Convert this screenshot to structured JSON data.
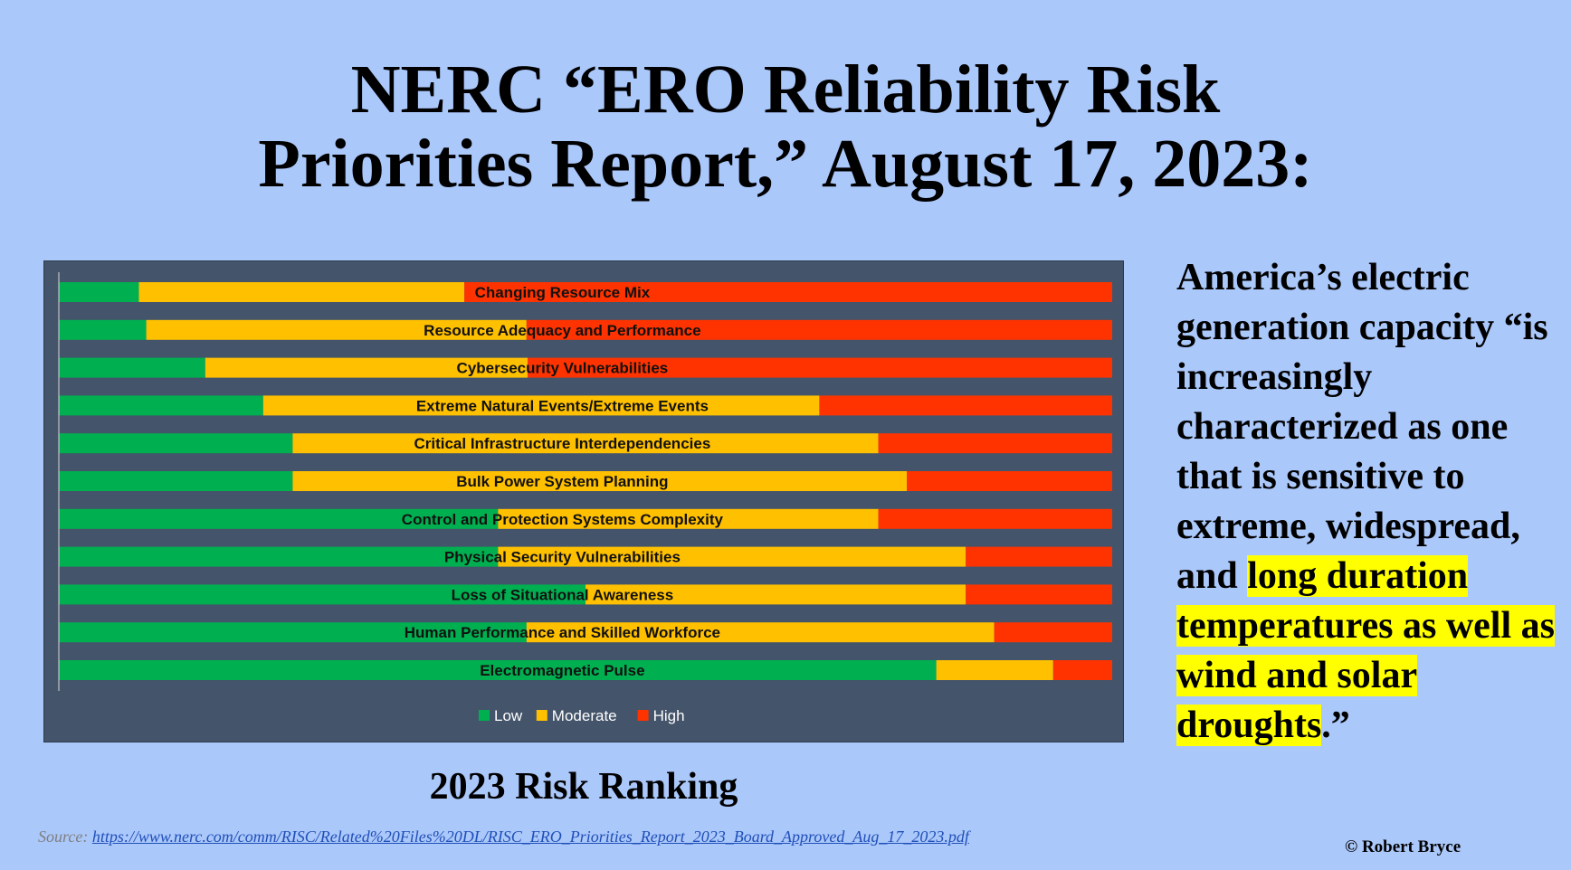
{
  "title": {
    "line1": "NERC “ERO Reliability Risk",
    "line2": "Priorities Report,” August 17, 2023:"
  },
  "chart_data": {
    "type": "bar",
    "orientation": "horizontal",
    "stacked": "100%",
    "categories": [
      "Changing Resource Mix",
      "Resource Adequacy and Performance",
      "Cybersecurity Vulnerabilities",
      "Extreme Natural Events/Extreme Events",
      "Critical  Infrastructure Interdependencies",
      "Bulk Power System Planning",
      "Control and Protection Systems Complexity",
      "Physical Security Vulnerabilities",
      "Loss of Situational Awareness",
      "Human Performance and Skilled Workforce",
      "Electromagnetic Pulse"
    ],
    "series": [
      {
        "name": "Low",
        "color": "#00b050",
        "values": [
          7.6,
          8.3,
          13.9,
          19.4,
          22.2,
          22.2,
          41.7,
          41.7,
          50.0,
          44.4,
          83.3
        ]
      },
      {
        "name": "Moderate",
        "color": "#ffc000",
        "values": [
          30.9,
          36.1,
          30.6,
          52.8,
          55.6,
          58.3,
          36.1,
          44.4,
          36.1,
          44.4,
          11.1
        ]
      },
      {
        "name": "High",
        "color": "#ff3300",
        "values": [
          61.5,
          55.6,
          55.5,
          27.8,
          22.2,
          19.5,
          22.2,
          13.9,
          13.9,
          11.2,
          5.6
        ]
      }
    ],
    "xlim": [
      0,
      100
    ],
    "legend_position": "bottom",
    "grid": false
  },
  "caption": "2023 Risk Ranking",
  "quote": {
    "part1": "America’s electric generation capacity “is increasingly characterized as one that is sensitive to extreme, widespread, and ",
    "highlight": "long duration temperatures as well as wind and solar droughts",
    "part2": ".”"
  },
  "source": {
    "label": "Source:",
    "url": "https://www.nerc.com/comm/RISC/Related%20Files%20DL/RISC_ERO_Priorities_Report_2023_Board_Approved_Aug_17_2023.pdf"
  },
  "copyright": "© Robert Bryce"
}
